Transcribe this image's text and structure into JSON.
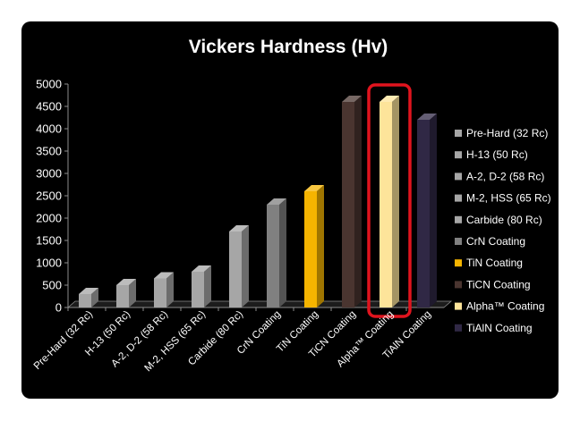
{
  "chart_data": {
    "type": "bar",
    "title": "Vickers Hardness (Hv)",
    "xlabel": "",
    "ylabel": "",
    "ylim": [
      0,
      5000
    ],
    "yticks": [
      0,
      500,
      1000,
      1500,
      2000,
      2500,
      3000,
      3500,
      4000,
      4500,
      5000
    ],
    "categories": [
      "Pre-Hard (32 Rc)",
      "H-13 (50 Rc)",
      "A-2, D-2 (58 Rc)",
      "M-2, HSS (65 Rc)",
      "Carbide (80 Rc)",
      "CrN Coating",
      "TiN Coating",
      "TiCN Coating",
      "Alpha™ Coating",
      "TiAlN Coating"
    ],
    "values": [
      300,
      500,
      650,
      800,
      1700,
      2300,
      2600,
      4600,
      4600,
      4200
    ],
    "colors": [
      "#a6a6a6",
      "#a6a6a6",
      "#a6a6a6",
      "#a6a6a6",
      "#a6a6a6",
      "#808080",
      "#f5b400",
      "#4a3530",
      "#fde49a",
      "#302845"
    ],
    "legend": {
      "position": "right",
      "entries": [
        "Pre-Hard (32 Rc)",
        "H-13 (50 Rc)",
        "A-2, D-2 (58 Rc)",
        "M-2, HSS (65 Rc)",
        "Carbide (80 Rc)",
        "CrN Coating",
        "TiN Coating",
        "TiCN Coating",
        "Alpha™ Coating",
        "TiAlN Coating"
      ]
    },
    "highlight": {
      "category": "Alpha™ Coating",
      "color": "#e0141e"
    },
    "grid": false
  }
}
